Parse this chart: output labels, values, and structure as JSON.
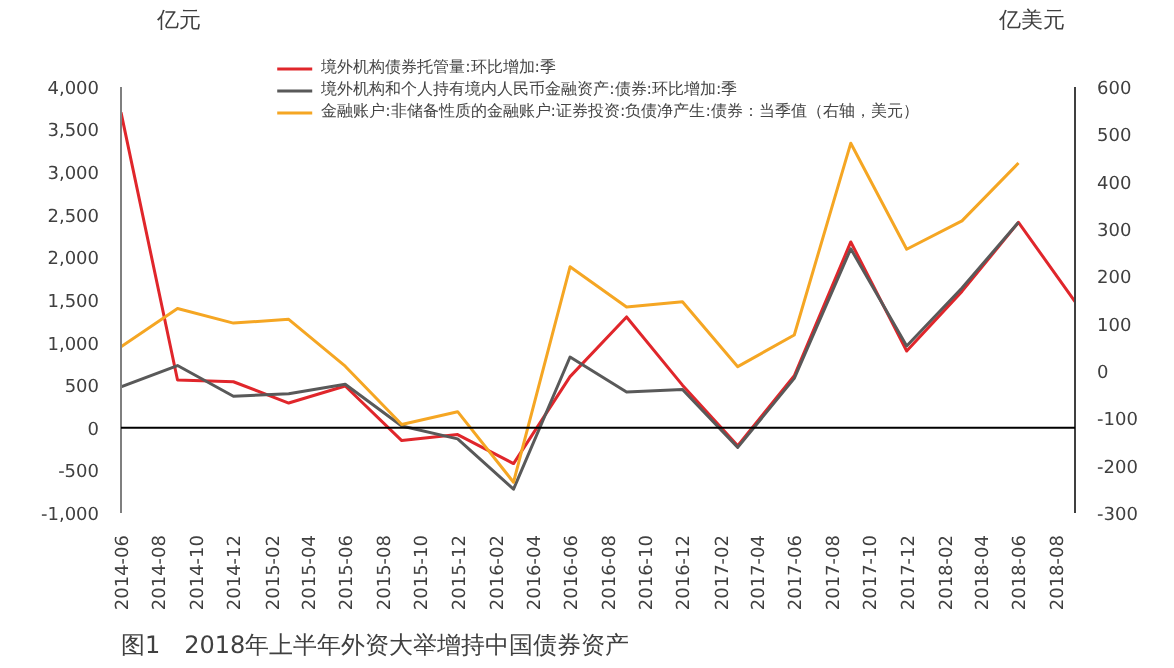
{
  "chart_data": {
    "type": "line",
    "title": "图1　2018年上半年外资大举增持中国债券资产",
    "ylabel": "亿元",
    "y2label": "亿美元",
    "x": [
      "2014-06",
      "2014-09",
      "2014-12",
      "2015-03",
      "2015-06",
      "2015-09",
      "2015-12",
      "2016-03",
      "2016-06",
      "2016-09",
      "2016-12",
      "2017-03",
      "2017-06",
      "2017-09",
      "2017-12",
      "2018-03",
      "2018-06",
      "2018-09"
    ],
    "series": [
      {
        "name": "境外机构债券托管量:环比增加:季",
        "color": "#e0262b",
        "values": [
          3700,
          560,
          540,
          290,
          490,
          -150,
          -80,
          -420,
          600,
          1300,
          500,
          -210,
          610,
          2180,
          900,
          1600,
          2410,
          1480
        ]
      },
      {
        "name": "境外机构和个人持有境内人民币金融资产:债券:环比增加:季",
        "color": "#595959",
        "values": [
          480,
          730,
          370,
          400,
          510,
          20,
          -130,
          -720,
          830,
          420,
          450,
          -230,
          580,
          2100,
          960,
          1640,
          2410,
          null
        ]
      },
      {
        "name": "金融账户:非储备性质的金融账户:证券投资:负债净产生:债券：当季值（右轴，美元）",
        "color": "#f5a623",
        "axis": "y2",
        "values": [
          51,
          132,
          101,
          109,
          10,
          -113,
          -86,
          -235,
          220,
          135,
          146,
          9,
          76,
          481,
          257,
          317,
          439,
          null
        ]
      }
    ],
    "xlim": [
      "2014-06",
      "2018-09"
    ],
    "xticks": [
      "2014-06",
      "2014-08",
      "2014-10",
      "2014-12",
      "2015-02",
      "2015-04",
      "2015-06",
      "2015-08",
      "2015-10",
      "2015-12",
      "2016-02",
      "2016-04",
      "2016-06",
      "2016-08",
      "2016-10",
      "2016-12",
      "2017-02",
      "2017-04",
      "2017-06",
      "2017-08",
      "2017-10",
      "2017-12",
      "2018-02",
      "2018-04",
      "2018-06",
      "2018-08"
    ],
    "ylim": [
      -1000,
      4000
    ],
    "yticks": [
      {
        "value": -1000,
        "label": "-1,000"
      },
      -500,
      0,
      500,
      {
        "value": 1000,
        "label": "1,000"
      },
      {
        "value": 1500,
        "label": "1,500"
      },
      {
        "value": 2000,
        "label": "2,000"
      },
      {
        "value": 2500,
        "label": "2,500"
      },
      {
        "value": 3000,
        "label": "3,000"
      },
      {
        "value": 3500,
        "label": "3,500"
      },
      {
        "value": 4000,
        "label": "4,000"
      }
    ],
    "y2lim": [
      -300,
      600
    ],
    "y2ticks": [
      -300,
      -200,
      -100,
      0,
      100,
      200,
      300,
      400,
      500,
      600
    ],
    "ref_lines": [
      {
        "axis": "y",
        "value": 0,
        "color": "#000000"
      }
    ],
    "grid": false,
    "legend": "top",
    "marker": "none",
    "line_style": "solid"
  }
}
